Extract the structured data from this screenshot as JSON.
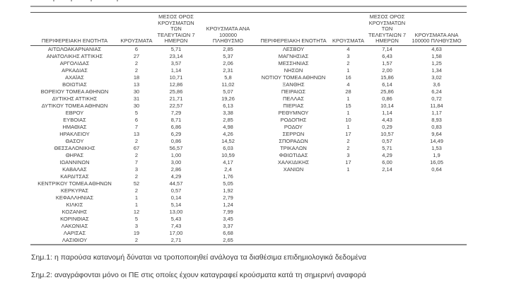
{
  "table": {
    "headers": {
      "region": "ΠΕΡΙΦΕΡΕΙΑΚΗ ΕΝΟΤΗΤΑ",
      "cases": "ΚΡΟΥΣΜΑΤΑ",
      "avg7": "ΜΕΣΟΣ ΟΡΟΣ\nΚΡΟΥΣΜΑΤΩΝ ΤΩΝ\nΤΕΛΕΥΤΑΙΩΝ 7\nΗΜΕΡΩΝ",
      "per100k_left": "ΚΡΟΥΣΜΑΤΑ ΑΝΑ 100000\nΠΛΗΘΥΣΜΟ",
      "per100k_right": "ΚΡΟΥΣΜΑΤΑ ΑΝΑ\n100000 ΠΛΗΘΥΣΜΟ"
    },
    "left_rows": [
      {
        "region": "ΑΙΤΩΛΟΑΚΑΡΝΑΝΙΑΣ",
        "cases": "6",
        "avg7": "5,71",
        "per100k": "2,85"
      },
      {
        "region": "ΑΝΑΤΟΛΙΚΗΣ ΑΤΤΙΚΗΣ",
        "cases": "27",
        "avg7": "23,14",
        "per100k": "5,37"
      },
      {
        "region": "ΑΡΓΟΛΙΔΑΣ",
        "cases": "2",
        "avg7": "3,57",
        "per100k": "2,06"
      },
      {
        "region": "ΑΡΚΑΔΙΑΣ",
        "cases": "2",
        "avg7": "1,14",
        "per100k": "2,31"
      },
      {
        "region": "ΑΧΑΪΑΣ",
        "cases": "18",
        "avg7": "10,71",
        "per100k": "5,8"
      },
      {
        "region": "ΒΟΙΩΤΙΑΣ",
        "cases": "13",
        "avg7": "12,86",
        "per100k": "11,02"
      },
      {
        "region": "ΒΟΡΕΙΟΥ ΤΟΜΕΑ ΑΘΗΝΩΝ",
        "cases": "30",
        "avg7": "25,86",
        "per100k": "5,07"
      },
      {
        "region": "ΔΥΤΙΚΗΣ ΑΤΤΙΚΗΣ",
        "cases": "31",
        "avg7": "21,71",
        "per100k": "19,26"
      },
      {
        "region": "ΔΥΤΙΚΟΥ ΤΟΜΕΑ ΑΘΗΝΩΝ",
        "cases": "30",
        "avg7": "22,57",
        "per100k": "6,13"
      },
      {
        "region": "ΕΒΡΟΥ",
        "cases": "5",
        "avg7": "7,29",
        "per100k": "3,38"
      },
      {
        "region": "ΕΥΒΟΙΑΣ",
        "cases": "6",
        "avg7": "8,71",
        "per100k": "2,85"
      },
      {
        "region": "ΗΜΑΘΙΑΣ",
        "cases": "7",
        "avg7": "6,86",
        "per100k": "4,98"
      },
      {
        "region": "ΗΡΑΚΛΕΙΟΥ",
        "cases": "13",
        "avg7": "6,29",
        "per100k": "4,26"
      },
      {
        "region": "ΘΑΣΟΥ",
        "cases": "2",
        "avg7": "0,86",
        "per100k": "14,52"
      },
      {
        "region": "ΘΕΣΣΑΛΟΝΙΚΗΣ",
        "cases": "67",
        "avg7": "56,57",
        "per100k": "6,03"
      },
      {
        "region": "ΘΗΡΑΣ",
        "cases": "2",
        "avg7": "1,00",
        "per100k": "10,59"
      },
      {
        "region": "ΙΩΑΝΝΙΝΩΝ",
        "cases": "7",
        "avg7": "3,00",
        "per100k": "4,17"
      },
      {
        "region": "ΚΑΒΑΛΑΣ",
        "cases": "3",
        "avg7": "2,86",
        "per100k": "2,4"
      },
      {
        "region": "ΚΑΡΔΙΤΣΑΣ",
        "cases": "2",
        "avg7": "4,29",
        "per100k": "1,76"
      },
      {
        "region": "ΚΕΝΤΡΙΚΟΥ ΤΟΜΕΑ ΑΘΗΝΩΝ",
        "cases": "52",
        "avg7": "44,57",
        "per100k": "5,05"
      },
      {
        "region": "ΚΕΡΚΥΡΑΣ",
        "cases": "2",
        "avg7": "0,57",
        "per100k": "1,92"
      },
      {
        "region": "ΚΕΦΑΛΛΗΝΙΑΣ",
        "cases": "1",
        "avg7": "0,14",
        "per100k": "2,79"
      },
      {
        "region": "ΚΙΛΚΙΣ",
        "cases": "1",
        "avg7": "5,14",
        "per100k": "1,24"
      },
      {
        "region": "ΚΟΖΑΝΗΣ",
        "cases": "12",
        "avg7": "13,00",
        "per100k": "7,99"
      },
      {
        "region": "ΚΟΡΙΝΘΙΑΣ",
        "cases": "5",
        "avg7": "5,43",
        "per100k": "3,45"
      },
      {
        "region": "ΛΑΚΩΝΙΑΣ",
        "cases": "3",
        "avg7": "7,43",
        "per100k": "3,37"
      },
      {
        "region": "ΛΑΡΙΣΑΣ",
        "cases": "19",
        "avg7": "17,00",
        "per100k": "6,68"
      },
      {
        "region": "ΛΑΣΙΘΙΟΥ",
        "cases": "2",
        "avg7": "2,71",
        "per100k": "2,65"
      }
    ],
    "right_rows": [
      {
        "region": "ΛΕΣΒΟΥ",
        "cases": "4",
        "avg7": "7,14",
        "per100k": "4,63"
      },
      {
        "region": "ΜΑΓΝΗΣΙΑΣ",
        "cases": "3",
        "avg7": "6,43",
        "per100k": "1,58"
      },
      {
        "region": "ΜΕΣΣΗΝΙΑΣ",
        "cases": "2",
        "avg7": "1,57",
        "per100k": "1,25"
      },
      {
        "region": "ΝΗΣΩΝ",
        "cases": "1",
        "avg7": "2,00",
        "per100k": "1,34"
      },
      {
        "region": "ΝΟΤΙΟΥ ΤΟΜΕΑ ΑΘΗΝΩΝ",
        "cases": "16",
        "avg7": "15,86",
        "per100k": "3,02"
      },
      {
        "region": "ΞΑΝΘΗΣ",
        "cases": "4",
        "avg7": "6,14",
        "per100k": "3,6"
      },
      {
        "region": "ΠΕΙΡΑΙΩΣ",
        "cases": "28",
        "avg7": "25,86",
        "per100k": "6,24"
      },
      {
        "region": "ΠΕΛΛΑΣ",
        "cases": "1",
        "avg7": "0,86",
        "per100k": "0,72"
      },
      {
        "region": "ΠΙΕΡΙΑΣ",
        "cases": "15",
        "avg7": "10,14",
        "per100k": "11,84"
      },
      {
        "region": "ΡΕΘΥΜΝΟΥ",
        "cases": "1",
        "avg7": "1,14",
        "per100k": "1,17"
      },
      {
        "region": "ΡΟΔΟΠΗΣ",
        "cases": "10",
        "avg7": "4,43",
        "per100k": "8,93"
      },
      {
        "region": "ΡΟΔΟΥ",
        "cases": "1",
        "avg7": "0,29",
        "per100k": "0,83"
      },
      {
        "region": "ΣΕΡΡΩΝ",
        "cases": "17",
        "avg7": "10,57",
        "per100k": "9,64"
      },
      {
        "region": "ΣΠΟΡΑΔΩΝ",
        "cases": "2",
        "avg7": "0,57",
        "per100k": "14,49"
      },
      {
        "region": "ΤΡΙΚΑΛΩΝ",
        "cases": "2",
        "avg7": "5,71",
        "per100k": "1,53"
      },
      {
        "region": "ΦΘΙΩΤΙΔΑΣ",
        "cases": "3",
        "avg7": "4,29",
        "per100k": "1,9"
      },
      {
        "region": "ΧΑΛΚΙΔΙΚΗΣ",
        "cases": "17",
        "avg7": "6,00",
        "per100k": "16,05"
      },
      {
        "region": "ΧΑΝΙΩΝ",
        "cases": "1",
        "avg7": "2,14",
        "per100k": "0,64"
      }
    ]
  },
  "notes": [
    "Σημ.1: η παρούσα κατανομή δύναται να τροποποιηθεί ανάλογα τα διαθέσιμα επιδημιολογικά δεδομένα",
    "Σημ.2: αναγράφονται μόνο οι ΠΕ στις οποίες έχουν καταγραφεί κρούσματα κατά τη σημερινή αναφορά"
  ],
  "colors": {
    "text": "#3d3d3d",
    "rule_light_gray": "#9e9e9e",
    "rule_dark_gray": "#4f4f4f",
    "bottom_border": "#8f8f8f"
  }
}
